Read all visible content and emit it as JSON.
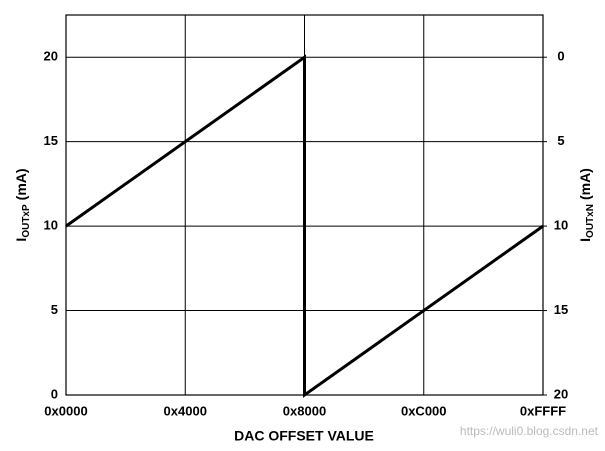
{
  "chart_data": {
    "type": "line",
    "x_label": "DAC OFFSET VALUE",
    "y_label": {
      "main": "I",
      "sub": "OUTxP",
      "unit": "(mA)"
    },
    "y2_label": {
      "main": "I",
      "sub": "OUTxN",
      "unit": "(mA)"
    },
    "x": [
      0,
      32768,
      32768,
      65535
    ],
    "series": [
      {
        "color": "#000000",
        "values": [
          10,
          20,
          0,
          10
        ]
      }
    ],
    "xlim": [
      0,
      65535
    ],
    "xticks": [
      {
        "value": 0,
        "label": "0x0000"
      },
      {
        "value": 16384,
        "label": "0x4000"
      },
      {
        "value": 32768,
        "label": "0x8000"
      },
      {
        "value": 49152,
        "label": "0xC000"
      },
      {
        "value": 65535,
        "label": "0xFFFF"
      }
    ],
    "ylim": [
      0,
      22.5
    ],
    "yticks": [
      0,
      5,
      10,
      15,
      20
    ],
    "y2lim": [
      20,
      -2.5
    ],
    "y2ticks": [
      20,
      15,
      10,
      5,
      0
    ],
    "grid": true,
    "watermark": "https://wuli0.blog.csdn.net"
  }
}
